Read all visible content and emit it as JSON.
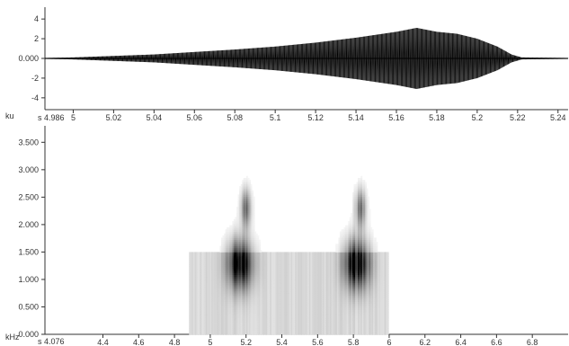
{
  "chart_data": [
    {
      "type": "line",
      "name": "waveform",
      "xlim": [
        4.986,
        5.245
      ],
      "ylim": [
        -5.2,
        5.2
      ],
      "ylabel_unit": "ku",
      "xlabel_unit": "s",
      "x_start_label": "4.986",
      "x_ticks": [
        5.0,
        5.02,
        5.04,
        5.06,
        5.08,
        5.1,
        5.12,
        5.14,
        5.16,
        5.18,
        5.2,
        5.22,
        5.24
      ],
      "x_tick_labels": [
        "5",
        "5.02",
        "5.04",
        "5.06",
        "5.08",
        "5.1",
        "5.12",
        "5.14",
        "5.16",
        "5.18",
        "5.2",
        "5.22",
        "5.24"
      ],
      "y_ticks": [
        4,
        2,
        0,
        -2,
        -4
      ],
      "y_tick_labels": [
        "4",
        "2",
        "0.000",
        "-2",
        "-4"
      ],
      "envelope": {
        "x": [
          4.986,
          5.0,
          5.04,
          5.08,
          5.1,
          5.12,
          5.14,
          5.16,
          5.17,
          5.18,
          5.19,
          5.2,
          5.21,
          5.217,
          5.222,
          5.245
        ],
        "amplitude": [
          0.05,
          0.1,
          0.4,
          0.9,
          1.2,
          1.6,
          2.1,
          2.7,
          3.1,
          2.7,
          2.5,
          2.0,
          1.2,
          0.4,
          0.1,
          0.05
        ]
      },
      "color": "#000000"
    },
    {
      "type": "heatmap",
      "name": "spectrogram",
      "xlim": [
        4.076,
        7.0
      ],
      "ylim": [
        0,
        3800
      ],
      "ylabel_unit": "kHz",
      "xlabel_unit": "s",
      "x_start_label": "4.076",
      "x_ticks": [
        4.4,
        4.6,
        4.8,
        5.0,
        5.2,
        5.4,
        5.6,
        5.8,
        6.0,
        6.2,
        6.4,
        6.6,
        6.8
      ],
      "x_tick_labels": [
        "4.4",
        "4.6",
        "4.8",
        "5",
        "5.2",
        "5.4",
        "5.6",
        "5.8",
        "6",
        "6.2",
        "6.4",
        "6.6",
        "6.8"
      ],
      "y_ticks": [
        3500,
        3000,
        2500,
        2000,
        1500,
        1000,
        500,
        0
      ],
      "y_tick_labels": [
        "3.500",
        "3.000",
        "2.500",
        "2.000",
        "1.500",
        "1.000",
        "0.500",
        "0.000"
      ],
      "energy_regions": [
        {
          "t_start": 4.88,
          "t_end": 6.0,
          "f_low": 0,
          "f_high": 1500,
          "intensity": 0.15
        },
        {
          "t_center": 5.17,
          "f_center": 1300,
          "t_spread": 0.07,
          "f_spread": 450,
          "intensity": 0.9
        },
        {
          "t_center": 5.2,
          "f_center": 2300,
          "t_spread": 0.03,
          "f_spread": 350,
          "intensity": 0.55
        },
        {
          "t_center": 5.82,
          "f_center": 1300,
          "t_spread": 0.07,
          "f_spread": 450,
          "intensity": 0.9
        },
        {
          "t_center": 5.84,
          "f_center": 2300,
          "t_spread": 0.03,
          "f_spread": 350,
          "intensity": 0.55
        }
      ],
      "colormap": "white-to-black"
    }
  ]
}
